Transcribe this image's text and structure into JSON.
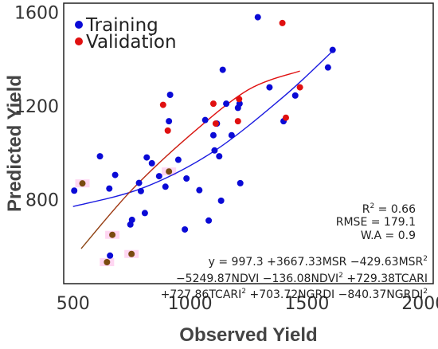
{
  "chart_data": {
    "type": "scatter",
    "xlabel": "Observed Yield",
    "ylabel": "Predicted Yield",
    "xlim": [
      460,
      2040
    ],
    "ylim": [
      440,
      1640
    ],
    "x_ticks": [
      500,
      1000,
      1500,
      2000
    ],
    "y_ticks": [
      800,
      1200,
      1600
    ],
    "grid": false,
    "legend_position": "top-left",
    "colors": {
      "training": "#0a0ad6",
      "validation": "#e01010",
      "training_fit": "#1a1ae0",
      "validation_fit_start": "#8b4513",
      "validation_fit_end": "#e01010",
      "overlap_point": "#7a4a10",
      "overlap_halo": "#ffd6f2"
    },
    "series": [
      {
        "name": "Training",
        "points": [
          [
            505,
            838
          ],
          [
            615,
            985
          ],
          [
            655,
            847
          ],
          [
            658,
            560
          ],
          [
            680,
            905
          ],
          [
            745,
            693
          ],
          [
            752,
            713
          ],
          [
            782,
            871
          ],
          [
            790,
            836
          ],
          [
            807,
            742
          ],
          [
            815,
            980
          ],
          [
            837,
            955
          ],
          [
            868,
            900
          ],
          [
            895,
            855
          ],
          [
            910,
            1135
          ],
          [
            915,
            1248
          ],
          [
            950,
            970
          ],
          [
            978,
            672
          ],
          [
            985,
            890
          ],
          [
            1040,
            840
          ],
          [
            1065,
            1140
          ],
          [
            1080,
            710
          ],
          [
            1100,
            1075
          ],
          [
            1105,
            1010
          ],
          [
            1115,
            1125
          ],
          [
            1125,
            985
          ],
          [
            1133,
            795
          ],
          [
            1140,
            1355
          ],
          [
            1155,
            1210
          ],
          [
            1178,
            1075
          ],
          [
            1205,
            1192
          ],
          [
            1212,
            1210
          ],
          [
            1215,
            870
          ],
          [
            1290,
            1580
          ],
          [
            1340,
            1280
          ],
          [
            1400,
            1135
          ],
          [
            1450,
            1245
          ],
          [
            1590,
            1365
          ],
          [
            1610,
            1440
          ]
        ]
      },
      {
        "name": "Validation",
        "points": [
          [
            885,
            1205
          ],
          [
            905,
            1095
          ],
          [
            1100,
            1210
          ],
          [
            1110,
            1125
          ],
          [
            1205,
            1135
          ],
          [
            1210,
            1230
          ],
          [
            1395,
            1555
          ],
          [
            1410,
            1150
          ],
          [
            1470,
            1280
          ]
        ]
      },
      {
        "name": "",
        "points": [
          [
            540,
            869
          ],
          [
            645,
            532
          ],
          [
            668,
            649
          ],
          [
            750,
            567
          ],
          [
            910,
            920
          ]
        ]
      }
    ],
    "fits": [
      {
        "from": 500,
        "to": 1610,
        "points": [
          [
            500,
            770
          ],
          [
            800,
            850
          ],
          [
            1100,
            1005
          ],
          [
            1400,
            1240
          ],
          [
            1610,
            1435
          ]
        ]
      },
      {
        "from": 535,
        "to": 1470,
        "points": [
          [
            535,
            590
          ],
          [
            750,
            840
          ],
          [
            1000,
            1075
          ],
          [
            1250,
            1270
          ],
          [
            1470,
            1350
          ]
        ]
      }
    ]
  },
  "legend": {
    "training_label": "Training",
    "validation_label": "Validation"
  },
  "stats": {
    "r2_prefix": "R",
    "r2_exp": "2",
    "r2_value": " = 0.66",
    "rmse": "RMSE = 179.1",
    "wa": "W.A = 0.9"
  },
  "equation": {
    "l1_a": "y = 997.3 +3667.33MSR −429.63MSR",
    "l1_sup": "2",
    "l2_a": "−5249.87NDVI −136.08NDVI",
    "l2_sup": "2",
    "l2_b": " +729.38TCARI",
    "l3_a": "+727.86TCARI",
    "l3_sup1": "2",
    "l3_b": " +703.72NGRDI −840.37NGRDI",
    "l3_sup2": "2"
  }
}
